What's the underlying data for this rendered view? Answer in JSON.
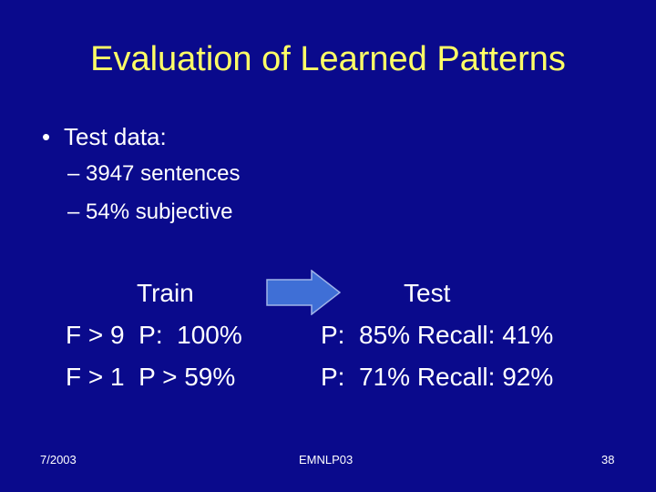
{
  "slide": {
    "title": "Evaluation of Learned Patterns",
    "bullet": {
      "marker": "•",
      "text": "Test data:"
    },
    "sub_items": [
      "– 3947 sentences",
      "– 54% subjective"
    ],
    "table": {
      "train_header": "Train",
      "test_header": "Test",
      "rows": [
        {
          "train": "F > 9  P:  100%",
          "test": "P:  85% Recall: 41%"
        },
        {
          "train": "F > 1  P > 59%",
          "test": "P:  71% Recall: 92%"
        }
      ]
    },
    "arrow_icon": "right-arrow-icon",
    "footer": {
      "date": "7/2003",
      "venue": "EMNLP03",
      "page": "38"
    },
    "colors": {
      "background": "#0a0a8c",
      "title": "#ffff66",
      "text": "#ffffff",
      "arrow_fill": "#3f6fd6",
      "arrow_stroke": "#9fb4e8"
    }
  }
}
